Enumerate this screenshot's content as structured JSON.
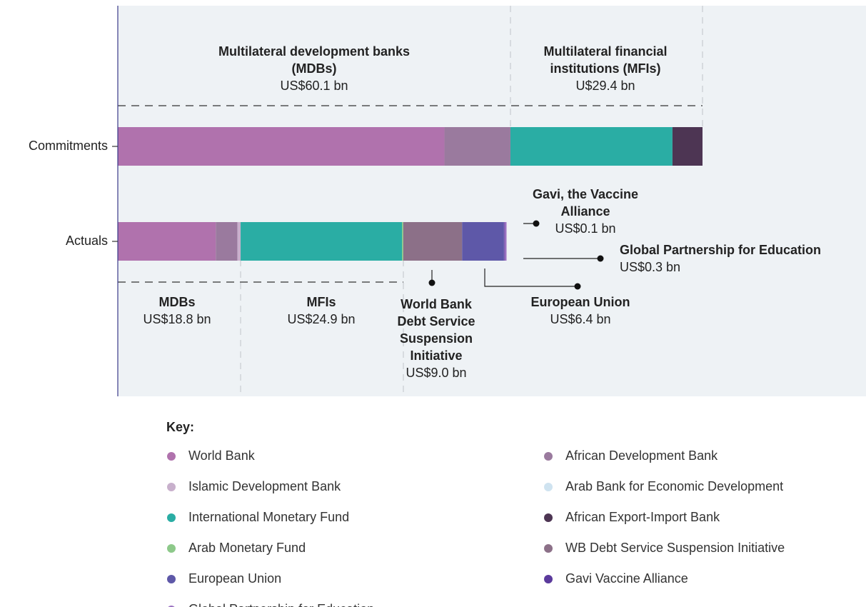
{
  "chart_data": {
    "type": "stacked-bar-horizontal",
    "categories": [
      "Commitments",
      "Actuals"
    ],
    "series": [
      {
        "name": "World Bank",
        "color": "#b072ad",
        "values": [
          50.0,
          15.0
        ]
      },
      {
        "name": "African Development Bank",
        "color": "#9a7a9e",
        "values": [
          10.1,
          3.3
        ]
      },
      {
        "name": "Islamic Development Bank",
        "color": "#c8b0cc",
        "values": [
          null,
          0.5
        ]
      },
      {
        "name": "Arab Bank for Economic Development",
        "color": "#cfe3f0",
        "values": [
          null,
          null
        ]
      },
      {
        "name": "International Monetary Fund",
        "color": "#2aada4",
        "values": [
          24.8,
          24.7
        ]
      },
      {
        "name": "African Export-Import Bank",
        "color": "#4d3553",
        "values": [
          4.6,
          null
        ]
      },
      {
        "name": "Arab Monetary Fund",
        "color": "#8dc98a",
        "values": [
          null,
          0.2
        ]
      },
      {
        "name": "WB Debt Service Suspension Initiative",
        "color": "#8c7088",
        "values": [
          null,
          9.0
        ]
      },
      {
        "name": "European Union",
        "color": "#5e58a8",
        "values": [
          null,
          6.4
        ]
      },
      {
        "name": "Gavi Vaccine Alliance",
        "color": "#5b3a9c",
        "values": [
          null,
          0.1
        ]
      },
      {
        "name": "Global Partnership for Education",
        "color": "#9a70c0",
        "values": [
          null,
          0.3
        ]
      }
    ],
    "annotations": [
      {
        "title": "Multilateral development banks (MDBs)",
        "value": "US$60.1 bn"
      },
      {
        "title": "Multilateral financial institutions (MFIs)",
        "value": "U$29.4 bn"
      },
      {
        "title": "Gavi, the Vaccine Alliance",
        "value": "US$0.1 bn"
      },
      {
        "title": "Global Partnership for Education",
        "value": "US$0.3 bn"
      },
      {
        "title": "European Union",
        "value": "US$6.4 bn"
      },
      {
        "title": "MDBs",
        "value": "US$18.8 bn"
      },
      {
        "title": "MFIs",
        "value": "US$24.9 bn"
      },
      {
        "title": "World Bank Debt Service Suspension Initiative",
        "value": "US$9.0 bn"
      }
    ],
    "legend_title": "Key:"
  }
}
